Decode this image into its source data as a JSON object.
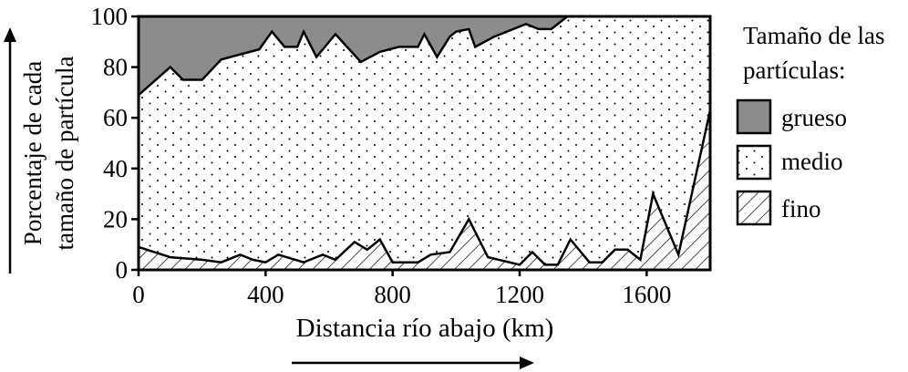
{
  "chart_data": {
    "type": "area",
    "stacked": true,
    "xlabel": "Distancia río abajo (km)",
    "ylabel_line1": "Porcentaje de cada",
    "ylabel_line2": "tamaño de partícula",
    "xlim": [
      0,
      1800
    ],
    "ylim": [
      0,
      100
    ],
    "x_ticks": [
      0,
      400,
      800,
      1200,
      1600
    ],
    "y_ticks": [
      0,
      20,
      40,
      60,
      80,
      100
    ],
    "legend": {
      "title_line1": "Tamaño de las",
      "title_line2": "partículas:",
      "placement": "right"
    },
    "colors": {
      "grueso": "#8c8c8c",
      "medio": "#ffffff",
      "fino": "#ffffff"
    },
    "series": [
      {
        "name": "fino",
        "pattern": "hatch",
        "x": [
          0,
          100,
          200,
          260,
          320,
          360,
          400,
          440,
          520,
          580,
          620,
          680,
          720,
          760,
          800,
          880,
          920,
          980,
          1040,
          1100,
          1200,
          1240,
          1280,
          1320,
          1360,
          1420,
          1460,
          1500,
          1540,
          1580,
          1620,
          1700,
          1800
        ],
        "upper": [
          9,
          5,
          4,
          3,
          6,
          4,
          3,
          6,
          3,
          6,
          4,
          11,
          8,
          12,
          3,
          3,
          6,
          7,
          20,
          5,
          2,
          7,
          2,
          2,
          12,
          3,
          3,
          8,
          8,
          4,
          30,
          6,
          63
        ]
      },
      {
        "name": "medio",
        "pattern": "dots",
        "x": [
          0,
          100,
          140,
          200,
          260,
          320,
          380,
          420,
          460,
          500,
          520,
          560,
          620,
          700,
          760,
          820,
          880,
          900,
          940,
          980,
          1000,
          1040,
          1060,
          1120,
          1220,
          1260,
          1300,
          1350,
          1800
        ],
        "upper": [
          69,
          80,
          75,
          75,
          83,
          85,
          87,
          94,
          88,
          88,
          94,
          84,
          93,
          82,
          86,
          88,
          88,
          93,
          84,
          92,
          94,
          95,
          88,
          92,
          97,
          95,
          95,
          100,
          100
        ]
      },
      {
        "name": "grueso",
        "pattern": "solid",
        "upper_constant": 100
      }
    ]
  }
}
